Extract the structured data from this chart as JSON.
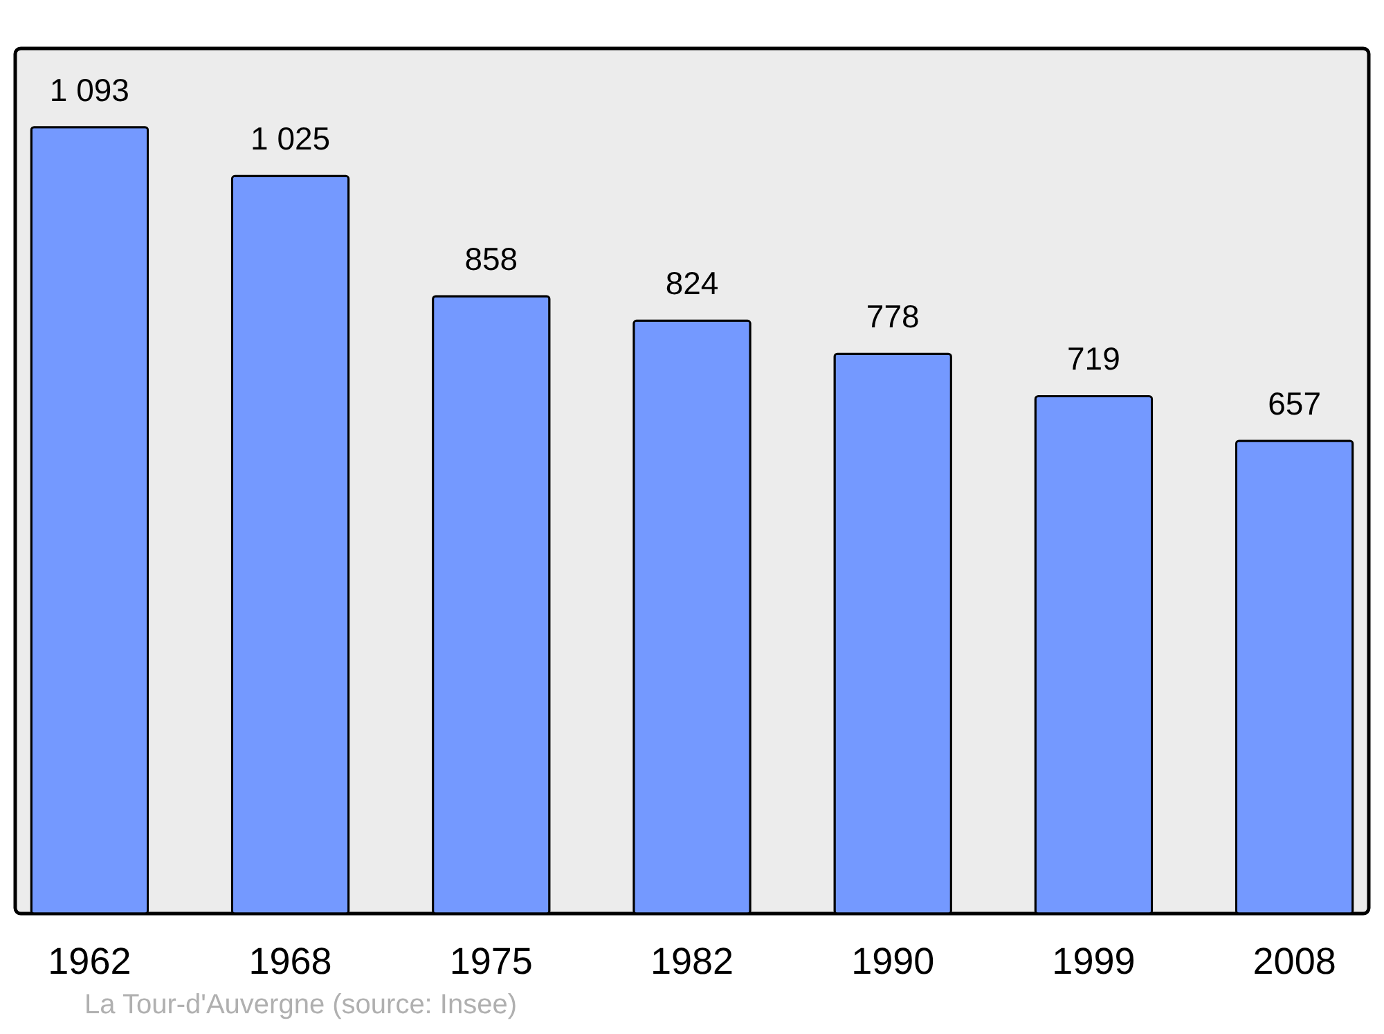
{
  "chart_data": {
    "type": "bar",
    "categories": [
      "1962",
      "1968",
      "1975",
      "1982",
      "1990",
      "1999",
      "2008"
    ],
    "values": [
      1093,
      1025,
      858,
      824,
      778,
      719,
      657
    ],
    "value_labels": [
      "1 093",
      "1 025",
      "858",
      "824",
      "778",
      "719",
      "657"
    ],
    "color": "#7499ff",
    "grid": false,
    "legend": false,
    "annotations": [
      "La Tour-d'Auvergne    (source: Insee)"
    ]
  }
}
